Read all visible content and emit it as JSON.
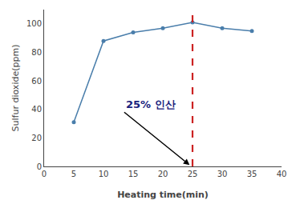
{
  "chart_data": {
    "type": "line",
    "x": [
      5,
      10,
      15,
      20,
      25,
      30,
      35
    ],
    "values": [
      31,
      88,
      94,
      97,
      101,
      97,
      95
    ],
    "color": "#4a7eab",
    "marker": "circle",
    "xlabel": "Heating time(min)",
    "ylabel": "Sulfur dioxide(ppm)",
    "xlim": [
      0,
      40
    ],
    "ylim": [
      0,
      110
    ],
    "xticks": [
      0,
      5,
      10,
      15,
      20,
      25,
      30,
      35,
      40
    ],
    "yticks": [
      0,
      20,
      40,
      60,
      80,
      100
    ],
    "grid": false,
    "vlines": [
      {
        "x": 25,
        "color": "#cc2222",
        "line_style": "dash"
      }
    ],
    "annotations": [
      {
        "text": "25% 인산",
        "x": 13.5,
        "y": 38,
        "arrow_x": 24.5,
        "arrow_y": 1,
        "color": "#1a237e"
      }
    ]
  }
}
